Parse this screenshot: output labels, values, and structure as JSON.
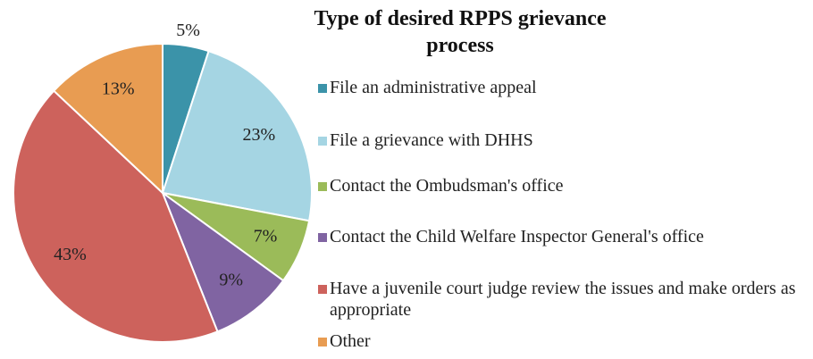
{
  "chart_data": {
    "type": "pie",
    "title": "Type of desired RPPS grievance process",
    "categories": [
      "File an administrative appeal",
      "File a grievance with DHHS",
      "Contact the Ombudsman's office",
      "Contact the Child Welfare Inspector General's office",
      "Have a juvenile court judge review the issues and make orders as appropriate",
      "Other"
    ],
    "values": [
      5,
      23,
      7,
      9,
      43,
      13
    ],
    "value_labels": [
      "5%",
      "23%",
      "7%",
      "9%",
      "43%",
      "13%"
    ],
    "colors": [
      "#3b93a9",
      "#a5d5e3",
      "#9bbb59",
      "#8064a2",
      "#cd625c",
      "#e89c52"
    ],
    "legend": "right"
  }
}
